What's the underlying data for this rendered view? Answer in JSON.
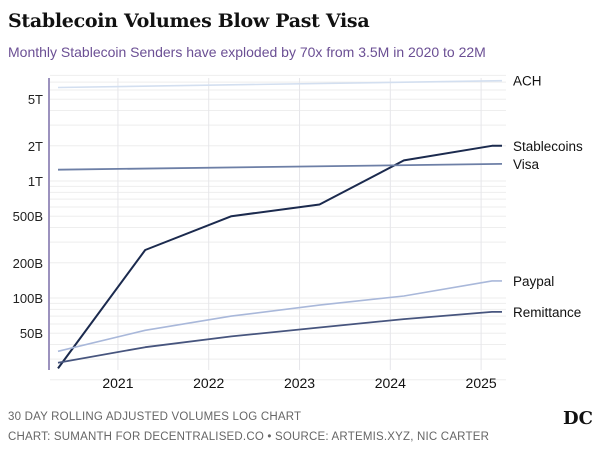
{
  "header": {
    "title": "Stablecoin Volumes Blow Past Visa",
    "subtitle": "Monthly Stablecoin Senders have exploded by 70x from 3.5M in 2020 to 22M"
  },
  "footer": {
    "note": "30 DAY ROLLING ADJUSTED VOLUMES LOG CHART",
    "credit": "CHART: SUMANTH FOR DECENTRALISED.CO • SOURCE: ARTEMIS.XYZ, NIC CARTER",
    "logo": "DC"
  },
  "chart_data": {
    "type": "line",
    "title": "Stablecoin Volumes Blow Past Visa",
    "subtitle": "Monthly Stablecoin Senders have exploded by 70x from 3.5M in 2020 to 22M",
    "xlabel": "",
    "ylabel": "",
    "yscale": "log",
    "ylim": [
      20000000000,
      8000000000000
    ],
    "xlim": [
      2020.34,
      2025.23
    ],
    "grid": true,
    "legend": "right-inline",
    "xticks": [
      {
        "value": 2021,
        "label": "2021"
      },
      {
        "value": 2022,
        "label": "2022"
      },
      {
        "value": 2023,
        "label": "2023"
      },
      {
        "value": 2024,
        "label": "2024"
      },
      {
        "value": 2025,
        "label": "2025"
      }
    ],
    "yticks": [
      {
        "value": 50000000000,
        "label": "50B"
      },
      {
        "value": 100000000000,
        "label": "100B"
      },
      {
        "value": 200000000000,
        "label": "200B"
      },
      {
        "value": 500000000000,
        "label": "500B"
      },
      {
        "value": 1000000000000,
        "label": "1T"
      },
      {
        "value": 2000000000000,
        "label": "2T"
      },
      {
        "value": 5000000000000,
        "label": "5T"
      }
    ],
    "series": [
      {
        "name": "ACH",
        "color": "#d3dff0",
        "width": 1.6,
        "x": [
          2020.34,
          2025.23
        ],
        "values": [
          6300000000000,
          7200000000000
        ]
      },
      {
        "name": "Stablecoins",
        "color": "#1b2a4e",
        "width": 2,
        "x": [
          2020.34,
          2021.3,
          2022.25,
          2023.22,
          2024.15,
          2025.12,
          2025.23
        ],
        "values": [
          25000000000,
          257000000000,
          500000000000,
          630000000000,
          1500000000000,
          2000000000000,
          2000000000000
        ]
      },
      {
        "name": "Visa",
        "color": "#6d7fa6",
        "width": 1.8,
        "x": [
          2020.34,
          2025.23
        ],
        "values": [
          1250000000000,
          1400000000000
        ]
      },
      {
        "name": "Paypal",
        "color": "#a9b8da",
        "width": 1.6,
        "x": [
          2020.34,
          2021.3,
          2022.25,
          2023.22,
          2024.15,
          2025.12,
          2025.23
        ],
        "values": [
          35000000000,
          53000000000,
          70000000000,
          87000000000,
          104000000000,
          140000000000,
          140000000000
        ]
      },
      {
        "name": "Remittance",
        "color": "#47557e",
        "width": 1.8,
        "x": [
          2020.34,
          2021.3,
          2022.25,
          2023.22,
          2024.15,
          2025.12,
          2025.23
        ],
        "values": [
          28000000000,
          38000000000,
          47000000000,
          56000000000,
          66000000000,
          76000000000,
          76000000000
        ]
      }
    ]
  }
}
